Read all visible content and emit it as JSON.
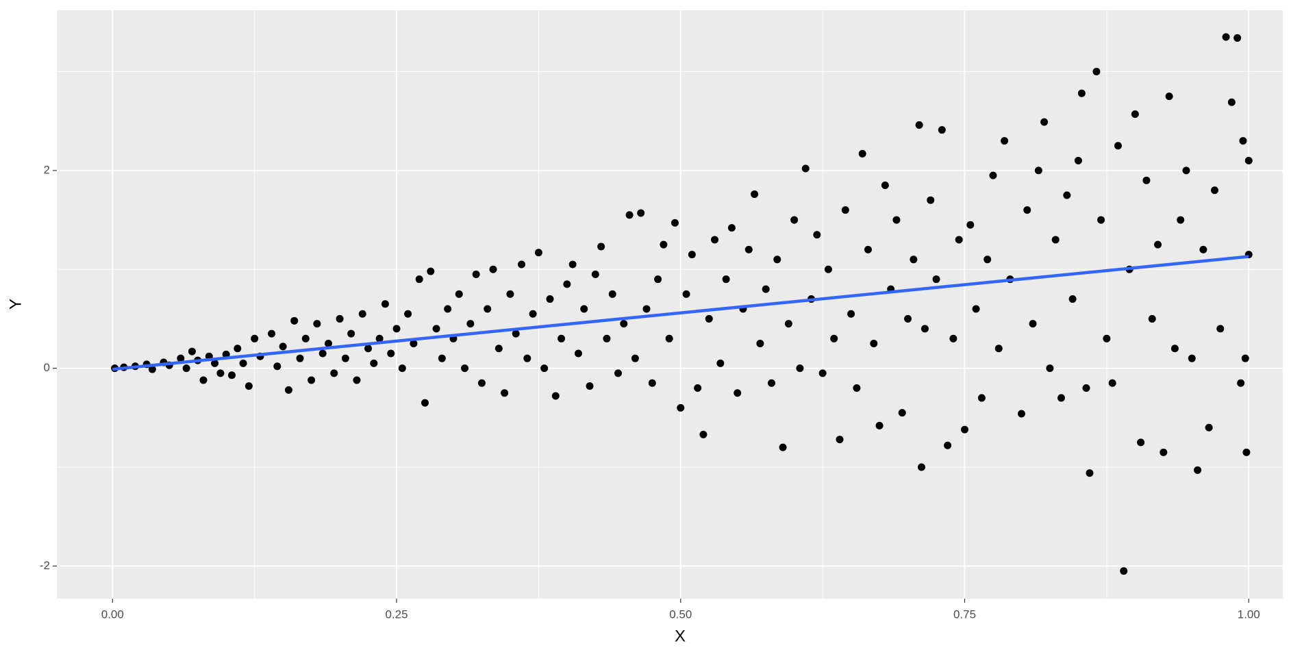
{
  "chart_data": {
    "type": "scatter",
    "x_label": "X",
    "y_label": "Y",
    "xlim": [
      -0.049,
      1.03
    ],
    "ylim": [
      -2.33,
      3.62
    ],
    "xticks": [
      {
        "value": 0,
        "label": "0.00"
      },
      {
        "value": 0.25,
        "label": "0.25"
      },
      {
        "value": 0.5,
        "label": "0.50"
      },
      {
        "value": 0.75,
        "label": "0.75"
      },
      {
        "value": 1,
        "label": "1.00"
      }
    ],
    "yticks": [
      -2,
      0,
      2
    ],
    "minor_xgrid": [
      0.125,
      0.375,
      0.625,
      0.875
    ],
    "minor_ygrid": [
      -1,
      1,
      3
    ],
    "grid": true,
    "color": "#000000",
    "x": [
      0.002,
      0.01,
      0.02,
      0.03,
      0.035,
      0.045,
      0.05,
      0.06,
      0.065,
      0.07,
      0.075,
      0.08,
      0.085,
      0.09,
      0.095,
      0.1,
      0.105,
      0.11,
      0.115,
      0.12,
      0.125,
      0.13,
      0.14,
      0.145,
      0.15,
      0.155,
      0.16,
      0.165,
      0.17,
      0.175,
      0.18,
      0.185,
      0.19,
      0.195,
      0.2,
      0.205,
      0.21,
      0.215,
      0.22,
      0.225,
      0.23,
      0.235,
      0.24,
      0.245,
      0.25,
      0.255,
      0.26,
      0.265,
      0.27,
      0.275,
      0.28,
      0.285,
      0.29,
      0.295,
      0.3,
      0.305,
      0.31,
      0.315,
      0.32,
      0.325,
      0.33,
      0.335,
      0.34,
      0.345,
      0.35,
      0.355,
      0.36,
      0.365,
      0.37,
      0.375,
      0.38,
      0.385,
      0.39,
      0.395,
      0.4,
      0.405,
      0.41,
      0.415,
      0.42,
      0.425,
      0.43,
      0.435,
      0.44,
      0.445,
      0.45,
      0.455,
      0.46,
      0.465,
      0.47,
      0.475,
      0.48,
      0.485,
      0.49,
      0.495,
      0.5,
      0.505,
      0.51,
      0.515,
      0.52,
      0.525,
      0.53,
      0.535,
      0.54,
      0.545,
      0.55,
      0.555,
      0.56,
      0.565,
      0.57,
      0.575,
      0.58,
      0.585,
      0.59,
      0.595,
      0.6,
      0.605,
      0.61,
      0.615,
      0.62,
      0.625,
      0.63,
      0.635,
      0.64,
      0.645,
      0.65,
      0.655,
      0.66,
      0.665,
      0.67,
      0.675,
      0.68,
      0.685,
      0.69,
      0.695,
      0.7,
      0.705,
      0.71,
      0.712,
      0.715,
      0.72,
      0.725,
      0.73,
      0.735,
      0.74,
      0.745,
      0.75,
      0.755,
      0.76,
      0.765,
      0.77,
      0.775,
      0.78,
      0.785,
      0.79,
      0.8,
      0.805,
      0.81,
      0.815,
      0.82,
      0.825,
      0.83,
      0.835,
      0.84,
      0.845,
      0.85,
      0.853,
      0.857,
      0.86,
      0.866,
      0.87,
      0.875,
      0.88,
      0.885,
      0.89,
      0.895,
      0.9,
      0.905,
      0.91,
      0.915,
      0.92,
      0.925,
      0.93,
      0.935,
      0.94,
      0.945,
      0.95,
      0.955,
      0.96,
      0.965,
      0.97,
      0.975,
      0.98,
      0.985,
      0.99,
      0.993,
      0.995,
      0.997,
      0.998,
      1.0,
      1.0
    ],
    "y": [
      0.0,
      0.01,
      0.02,
      0.04,
      -0.01,
      0.06,
      0.03,
      0.1,
      0.0,
      0.17,
      0.08,
      -0.12,
      0.12,
      0.05,
      -0.05,
      0.14,
      -0.07,
      0.2,
      0.05,
      -0.18,
      0.3,
      0.12,
      0.35,
      0.02,
      0.22,
      -0.22,
      0.48,
      0.1,
      0.3,
      -0.12,
      0.45,
      0.15,
      0.25,
      -0.05,
      0.5,
      0.1,
      0.35,
      -0.12,
      0.55,
      0.2,
      0.05,
      0.3,
      0.65,
      0.15,
      0.4,
      0.0,
      0.55,
      0.25,
      0.9,
      -0.35,
      0.98,
      0.4,
      0.1,
      0.6,
      0.3,
      0.75,
      0.0,
      0.45,
      0.95,
      -0.15,
      0.6,
      1.0,
      0.2,
      -0.25,
      0.75,
      0.35,
      1.05,
      0.1,
      0.55,
      1.17,
      0.0,
      0.7,
      -0.28,
      0.3,
      0.85,
      1.05,
      0.15,
      0.6,
      -0.18,
      0.95,
      1.23,
      0.3,
      0.75,
      -0.05,
      0.45,
      1.55,
      0.1,
      1.57,
      0.6,
      -0.15,
      0.9,
      1.25,
      0.3,
      1.47,
      -0.4,
      0.75,
      1.15,
      -0.2,
      -0.67,
      0.5,
      1.3,
      0.05,
      0.9,
      1.42,
      -0.25,
      0.6,
      1.2,
      1.76,
      0.25,
      0.8,
      -0.15,
      1.1,
      -0.8,
      0.45,
      1.5,
      0.0,
      2.02,
      0.7,
      1.35,
      -0.05,
      1.0,
      0.3,
      -0.72,
      1.6,
      0.55,
      -0.2,
      2.17,
      1.2,
      0.25,
      -0.58,
      1.85,
      0.8,
      1.5,
      -0.45,
      0.5,
      1.1,
      2.46,
      -1.0,
      0.4,
      1.7,
      0.9,
      2.41,
      -0.78,
      0.3,
      1.3,
      -0.62,
      1.45,
      0.6,
      -0.3,
      1.1,
      1.95,
      0.2,
      2.3,
      0.9,
      -0.46,
      1.6,
      0.45,
      2.0,
      2.49,
      0.0,
      1.3,
      -0.3,
      1.75,
      0.7,
      2.1,
      2.78,
      -0.2,
      -1.06,
      3.0,
      1.5,
      0.3,
      -0.15,
      2.25,
      -2.05,
      1.0,
      2.57,
      -0.75,
      1.9,
      0.5,
      1.25,
      -0.85,
      2.75,
      0.2,
      1.5,
      2.0,
      0.1,
      -1.03,
      1.2,
      -0.6,
      1.8,
      0.4,
      3.35,
      2.69,
      3.34,
      -0.15,
      2.3,
      0.1,
      -0.85,
      1.15,
      2.1
    ],
    "fit": {
      "color": "#3366ff",
      "x": [
        0,
        1
      ],
      "y": [
        -0.01,
        1.13
      ]
    }
  }
}
